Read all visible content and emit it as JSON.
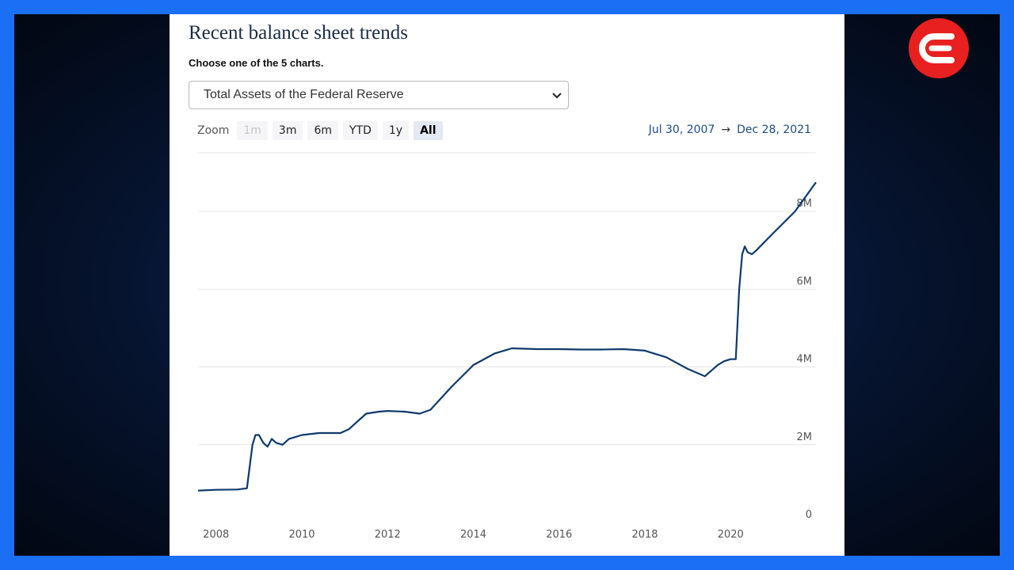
{
  "page": {
    "title": "Recent balance sheet trends",
    "subtitle": "Choose one of the 5 charts."
  },
  "selector": {
    "selected": "Total Assets of the Federal Reserve",
    "icon": "chevron-down-icon"
  },
  "zoom": {
    "label": "Zoom",
    "buttons": [
      {
        "label": "1m",
        "state": "disabled"
      },
      {
        "label": "3m",
        "state": "normal"
      },
      {
        "label": "6m",
        "state": "normal"
      },
      {
        "label": "YTD",
        "state": "normal"
      },
      {
        "label": "1y",
        "state": "normal"
      },
      {
        "label": "All",
        "state": "active"
      }
    ]
  },
  "range": {
    "from": "Jul 30, 2007",
    "arrow": "→",
    "to": "Dec 28, 2021"
  },
  "logo": {
    "icon": "brand-logo-icon",
    "color": "#e8201f"
  },
  "chart_data": {
    "type": "line",
    "title": "",
    "xlabel": "",
    "ylabel": "",
    "series_color": "#0f3a6b",
    "xlim": [
      2007.58,
      2021.99
    ],
    "ylim": [
      0,
      9000000
    ],
    "x_ticks": [
      2008,
      2010,
      2012,
      2014,
      2016,
      2018,
      2020
    ],
    "x_tick_labels": [
      "2008",
      "2010",
      "2012",
      "2014",
      "2016",
      "2018",
      "2020"
    ],
    "y_ticks": [
      0,
      2000000,
      4000000,
      6000000,
      8000000
    ],
    "y_tick_labels": [
      "0",
      "2M",
      "4M",
      "6M",
      "8M"
    ],
    "grid": "horizontal",
    "legend": "none",
    "series": [
      {
        "x": [
          2007.58,
          2008.0,
          2008.5,
          2008.72,
          2008.85,
          2008.92,
          2009.0,
          2009.1,
          2009.2,
          2009.3,
          2009.4,
          2009.55,
          2009.7,
          2010.0,
          2010.4,
          2010.9,
          2011.1,
          2011.5,
          2011.8,
          2012.0,
          2012.4,
          2012.75,
          2013.0,
          2013.5,
          2014.0,
          2014.5,
          2014.9,
          2015.5,
          2016.0,
          2016.5,
          2017.0,
          2017.5,
          2018.0,
          2018.5,
          2019.0,
          2019.4,
          2019.7,
          2019.85,
          2020.0,
          2020.12,
          2020.2,
          2020.27,
          2020.33,
          2020.4,
          2020.5,
          2020.6,
          2021.0,
          2021.5,
          2021.99
        ],
        "y": [
          820000,
          840000,
          850000,
          880000,
          2000000,
          2250000,
          2250000,
          2050000,
          1950000,
          2150000,
          2050000,
          2000000,
          2150000,
          2250000,
          2300000,
          2300000,
          2400000,
          2800000,
          2850000,
          2870000,
          2850000,
          2800000,
          2900000,
          3500000,
          4050000,
          4350000,
          4480000,
          4460000,
          4460000,
          4450000,
          4450000,
          4460000,
          4420000,
          4250000,
          3950000,
          3760000,
          4050000,
          4150000,
          4200000,
          4200000,
          6000000,
          6900000,
          7100000,
          6950000,
          6900000,
          7000000,
          7450000,
          8000000,
          8750000
        ]
      }
    ]
  }
}
